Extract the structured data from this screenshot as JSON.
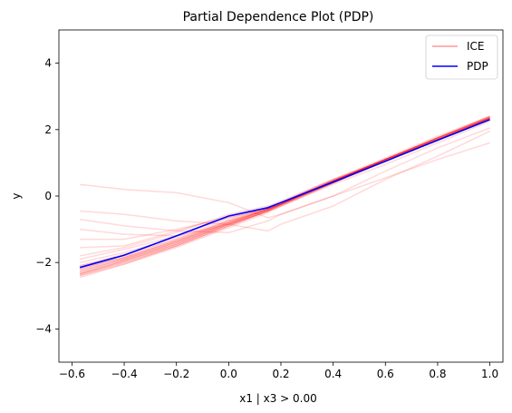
{
  "chart_data": {
    "type": "line",
    "title": "Partial Dependence Plot (PDP)",
    "xlabel": "x1 | x3 > 0.00",
    "ylabel": "y",
    "xlim": [
      -0.65,
      1.05
    ],
    "ylim": [
      -5,
      5
    ],
    "xticks": [
      -0.6,
      -0.4,
      -0.2,
      0.0,
      0.2,
      0.4,
      0.6,
      0.8,
      1.0
    ],
    "xtick_labels": [
      "−0.6",
      "−0.4",
      "−0.2",
      "0.0",
      "0.2",
      "0.4",
      "0.6",
      "0.8",
      "1.0"
    ],
    "yticks": [
      -4,
      -2,
      0,
      2,
      4
    ],
    "ytick_labels": [
      "−4",
      "−2",
      "0",
      "2",
      "4"
    ],
    "grid": false,
    "legend_position": "top-right",
    "legend": [
      {
        "label": "ICE",
        "color": "#ff9999"
      },
      {
        "label": "PDP",
        "color": "#0000ff"
      }
    ],
    "ice_color": "#ff0000",
    "pdp_color": "#0000ff",
    "x": [
      -0.57,
      -0.4,
      -0.2,
      0.0,
      0.15,
      0.2,
      0.4,
      0.6,
      0.8,
      1.0
    ],
    "series": [
      {
        "values": [
          0.35,
          0.2,
          0.1,
          -0.2,
          -0.65,
          -0.55,
          0.0,
          0.55,
          1.1,
          1.6
        ]
      },
      {
        "values": [
          -0.45,
          -0.55,
          -0.75,
          -0.85,
          -1.05,
          -0.85,
          -0.3,
          0.5,
          1.2,
          1.95
        ]
      },
      {
        "values": [
          -0.7,
          -0.9,
          -1.05,
          -1.1,
          -0.75,
          -0.55,
          0.0,
          0.75,
          1.45,
          2.05
        ]
      },
      {
        "values": [
          -1.0,
          -1.15,
          -1.2,
          -0.85,
          -0.45,
          -0.3,
          0.35,
          0.95,
          1.6,
          2.25
        ]
      },
      {
        "values": [
          -1.3,
          -1.3,
          -1.0,
          -0.65,
          -0.4,
          -0.2,
          0.5,
          1.05,
          1.7,
          2.3
        ]
      },
      {
        "values": [
          -1.55,
          -1.5,
          -1.05,
          -0.6,
          -0.35,
          -0.2,
          0.45,
          1.1,
          1.7,
          2.35
        ]
      },
      {
        "values": [
          -1.8,
          -1.55,
          -1.1,
          -0.55,
          -0.3,
          -0.15,
          0.5,
          1.1,
          1.75,
          2.35
        ]
      },
      {
        "values": [
          -1.9,
          -1.6,
          -1.2,
          -0.65,
          -0.35,
          -0.2,
          0.45,
          1.1,
          1.7,
          2.3
        ]
      },
      {
        "values": [
          -2.0,
          -1.7,
          -1.25,
          -0.7,
          -0.35,
          -0.2,
          0.45,
          1.1,
          1.7,
          2.35
        ]
      },
      {
        "values": [
          -2.1,
          -1.75,
          -1.3,
          -0.75,
          -0.4,
          -0.25,
          0.4,
          1.05,
          1.7,
          2.3
        ]
      },
      {
        "values": [
          -2.15,
          -1.85,
          -1.35,
          -0.8,
          -0.4,
          -0.25,
          0.4,
          1.05,
          1.7,
          2.3
        ]
      },
      {
        "values": [
          -2.2,
          -1.85,
          -1.35,
          -0.75,
          -0.35,
          -0.2,
          0.45,
          1.1,
          1.75,
          2.35
        ]
      },
      {
        "values": [
          -2.25,
          -1.9,
          -1.4,
          -0.8,
          -0.4,
          -0.25,
          0.4,
          1.05,
          1.7,
          2.35
        ]
      },
      {
        "values": [
          -2.3,
          -1.9,
          -1.4,
          -0.8,
          -0.4,
          -0.2,
          0.45,
          1.1,
          1.75,
          2.35
        ]
      },
      {
        "values": [
          -2.3,
          -1.95,
          -1.45,
          -0.85,
          -0.4,
          -0.25,
          0.4,
          1.05,
          1.7,
          2.3
        ]
      },
      {
        "values": [
          -2.35,
          -1.95,
          -1.45,
          -0.85,
          -0.45,
          -0.25,
          0.45,
          1.1,
          1.75,
          2.4
        ]
      },
      {
        "values": [
          -2.35,
          -2.0,
          -1.5,
          -0.9,
          -0.45,
          -0.3,
          0.4,
          1.05,
          1.7,
          2.35
        ]
      },
      {
        "values": [
          -2.4,
          -2.0,
          -1.5,
          -0.9,
          -0.45,
          -0.25,
          0.45,
          1.1,
          1.75,
          2.4
        ]
      },
      {
        "values": [
          -2.4,
          -2.05,
          -1.55,
          -0.95,
          -0.5,
          -0.3,
          0.4,
          1.05,
          1.7,
          2.35
        ]
      },
      {
        "values": [
          -2.45,
          -2.05,
          -1.5,
          -0.9,
          -0.45,
          -0.25,
          0.45,
          1.1,
          1.75,
          2.4
        ]
      },
      {
        "values": [
          -2.2,
          -1.85,
          -1.35,
          -0.8,
          -0.4,
          -0.25,
          0.45,
          1.1,
          1.75,
          2.35
        ]
      },
      {
        "values": [
          -2.1,
          -1.8,
          -1.3,
          -0.75,
          -0.4,
          -0.25,
          0.45,
          1.1,
          1.7,
          2.3
        ]
      },
      {
        "values": [
          -2.25,
          -1.9,
          -1.4,
          -0.85,
          -0.45,
          -0.25,
          0.45,
          1.1,
          1.75,
          2.35
        ]
      },
      {
        "values": [
          -2.35,
          -1.95,
          -1.45,
          -0.85,
          -0.4,
          -0.2,
          0.5,
          1.15,
          1.8,
          2.4
        ]
      }
    ],
    "pdp": {
      "name": "PDP",
      "values": [
        -2.15,
        -1.78,
        -1.2,
        -0.6,
        -0.35,
        -0.2,
        0.42,
        1.05,
        1.68,
        2.3
      ]
    }
  }
}
